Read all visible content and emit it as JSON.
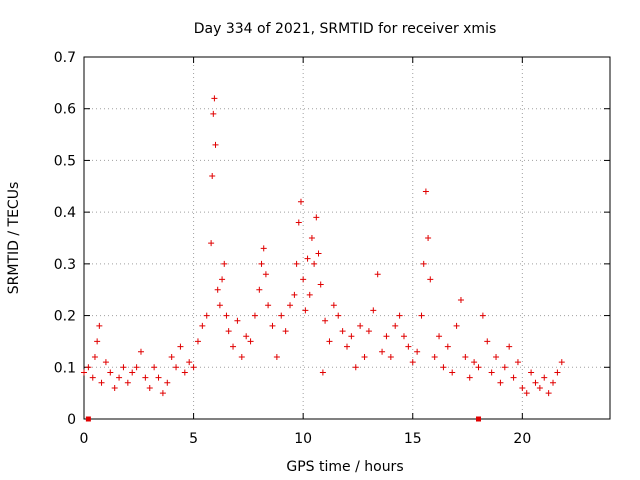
{
  "chart_data": {
    "type": "scatter",
    "title": "Day 334 of 2021, SRMTID for receiver xmis",
    "xlabel": "GPS time / hours",
    "ylabel": "SRMTID / TECUs",
    "xlim": [
      0,
      24
    ],
    "ylim": [
      0,
      0.7
    ],
    "xticks": [
      0,
      5,
      10,
      15,
      20
    ],
    "yticks": [
      0,
      0.1,
      0.2,
      0.3,
      0.4,
      0.5,
      0.6,
      0.7
    ],
    "grid": true,
    "marker": "+",
    "color": "#e00000",
    "series": [
      {
        "name": "SRMTID",
        "x": [
          0.0,
          0.2,
          0.4,
          0.5,
          0.6,
          0.7,
          0.8,
          1.0,
          1.2,
          1.4,
          1.6,
          1.8,
          2.0,
          2.2,
          2.4,
          2.6,
          2.8,
          3.0,
          3.2,
          3.4,
          3.6,
          3.8,
          4.0,
          4.2,
          4.4,
          4.6,
          4.8,
          5.0,
          5.2,
          5.4,
          5.6,
          5.8,
          5.85,
          5.9,
          5.95,
          6.0,
          6.1,
          6.2,
          6.3,
          6.4,
          6.5,
          6.6,
          6.8,
          7.0,
          7.2,
          7.4,
          7.6,
          7.8,
          8.0,
          8.1,
          8.2,
          8.3,
          8.4,
          8.6,
          8.8,
          9.0,
          9.2,
          9.4,
          9.6,
          9.7,
          9.8,
          9.9,
          10.0,
          10.1,
          10.2,
          10.3,
          10.4,
          10.5,
          10.6,
          10.7,
          10.8,
          10.9,
          11.0,
          11.2,
          11.4,
          11.6,
          11.8,
          12.0,
          12.2,
          12.4,
          12.6,
          12.8,
          13.0,
          13.2,
          13.4,
          13.6,
          13.8,
          14.0,
          14.2,
          14.4,
          14.6,
          14.8,
          15.0,
          15.2,
          15.4,
          15.5,
          15.6,
          15.7,
          15.8,
          16.0,
          16.2,
          16.4,
          16.6,
          16.8,
          17.0,
          17.2,
          17.4,
          17.6,
          17.8,
          18.0,
          18.2,
          18.4,
          18.6,
          18.8,
          19.0,
          19.2,
          19.4,
          19.6,
          19.8,
          20.0,
          20.2,
          20.4,
          20.6,
          20.8,
          21.0,
          21.2,
          21.4,
          21.6,
          21.8
        ],
        "y": [
          0.09,
          0.1,
          0.08,
          0.12,
          0.15,
          0.18,
          0.07,
          0.11,
          0.09,
          0.06,
          0.08,
          0.1,
          0.07,
          0.09,
          0.1,
          0.13,
          0.08,
          0.06,
          0.1,
          0.08,
          0.05,
          0.07,
          0.12,
          0.1,
          0.14,
          0.09,
          0.11,
          0.1,
          0.15,
          0.18,
          0.2,
          0.34,
          0.47,
          0.59,
          0.62,
          0.53,
          0.25,
          0.22,
          0.27,
          0.3,
          0.2,
          0.17,
          0.14,
          0.19,
          0.12,
          0.16,
          0.15,
          0.2,
          0.25,
          0.3,
          0.33,
          0.28,
          0.22,
          0.18,
          0.12,
          0.2,
          0.17,
          0.22,
          0.24,
          0.3,
          0.38,
          0.42,
          0.27,
          0.21,
          0.31,
          0.24,
          0.35,
          0.3,
          0.39,
          0.32,
          0.26,
          0.09,
          0.19,
          0.15,
          0.22,
          0.2,
          0.17,
          0.14,
          0.16,
          0.1,
          0.18,
          0.12,
          0.17,
          0.21,
          0.28,
          0.13,
          0.16,
          0.12,
          0.18,
          0.2,
          0.16,
          0.14,
          0.11,
          0.13,
          0.2,
          0.3,
          0.44,
          0.35,
          0.27,
          0.12,
          0.16,
          0.1,
          0.14,
          0.09,
          0.18,
          0.23,
          0.12,
          0.08,
          0.11,
          0.1,
          0.2,
          0.15,
          0.09,
          0.12,
          0.07,
          0.1,
          0.14,
          0.08,
          0.11,
          0.06,
          0.05,
          0.09,
          0.07,
          0.06,
          0.08,
          0.05,
          0.07,
          0.09,
          0.11
        ]
      }
    ],
    "markers_on_axis": [
      0.2,
      18.0
    ]
  }
}
